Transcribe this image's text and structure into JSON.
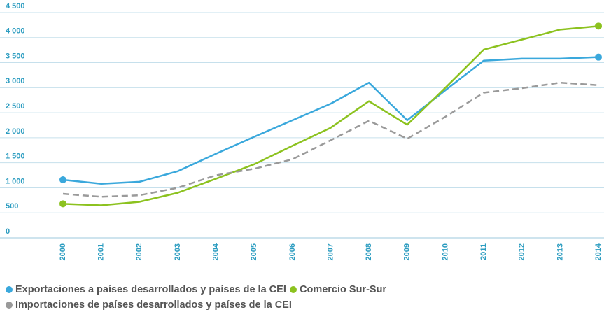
{
  "chart_data": {
    "type": "line",
    "categories": [
      "2000",
      "2001",
      "2002",
      "2003",
      "2004",
      "2005",
      "2006",
      "2007",
      "2008",
      "2009",
      "2010",
      "2011",
      "2012",
      "2013",
      "2014"
    ],
    "series": [
      {
        "name": "Exportaciones a países desarrollados y países de la CEI",
        "color": "#3aa8dc",
        "dashed": false,
        "end_markers": true,
        "values": [
          1160,
          1080,
          1120,
          1330,
          1680,
          2020,
          2350,
          2680,
          3100,
          2350,
          2950,
          3540,
          3580,
          3580,
          3610
        ]
      },
      {
        "name": "Comercio Sur-Sur",
        "color": "#8cc21f",
        "dashed": false,
        "end_markers": true,
        "values": [
          680,
          650,
          720,
          900,
          1180,
          1470,
          1840,
          2200,
          2730,
          2260,
          3000,
          3760,
          3960,
          4160,
          4230
        ]
      },
      {
        "name": "Importaciones de países desarrollados y países de la CEI",
        "color": "#9a9a9a",
        "dashed": true,
        "end_markers": false,
        "values": [
          880,
          820,
          850,
          1000,
          1250,
          1380,
          1570,
          1950,
          2340,
          1980,
          2420,
          2900,
          2990,
          3100,
          3050
        ]
      }
    ],
    "ylim": [
      0,
      4500
    ],
    "yticks": [
      0,
      500,
      {
        "value": 1000,
        "label": "1 000"
      },
      {
        "value": 1500,
        "label": "1 500"
      },
      {
        "value": 2000,
        "label": "2 000"
      },
      {
        "value": 2500,
        "label": "2 500"
      },
      {
        "value": 3000,
        "label": "3 000"
      },
      {
        "value": 3500,
        "label": "3 500"
      },
      {
        "value": 4000,
        "label": "4 000"
      },
      {
        "value": 4500,
        "label": "4 500"
      }
    ],
    "grid": true
  }
}
